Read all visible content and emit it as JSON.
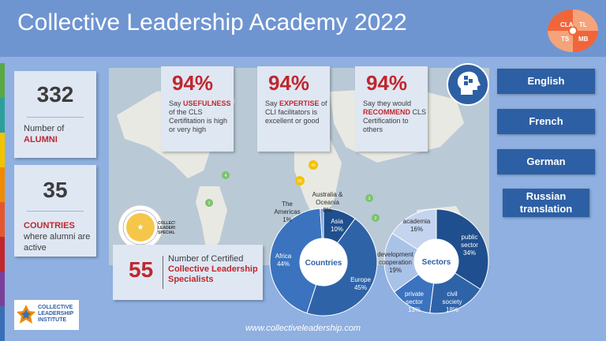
{
  "title": "Collective Leadership Academy 2022",
  "badge": {
    "tl": "CLA",
    "tr": "TL",
    "bl": "TS",
    "br": "MB"
  },
  "stats": [
    {
      "number": "332",
      "label_plain": "Number of",
      "label_red": "ALUMNI"
    },
    {
      "number": "35",
      "label_red": "COUNTRIES",
      "label_plain": "where alumni are active"
    }
  ],
  "percents": [
    {
      "value": "94%",
      "pre": "Say ",
      "em": "USEFULNESS",
      "post": " of the CLS Certifitation is high or very high"
    },
    {
      "value": "94%",
      "pre": "Say ",
      "em": "EXPERTISE",
      "post": " of CLI facilitators is excellent or good"
    },
    {
      "value": "94%",
      "pre": "Say they would ",
      "em": "RECOMMEND",
      "post": " CLS Certification to others"
    }
  ],
  "languages": [
    "English",
    "French",
    "German",
    "Russian translation"
  ],
  "certified": {
    "number": "55",
    "line1": "Number of Certified",
    "line2": "Collective Leadership",
    "line3": "Specialists"
  },
  "seal_text": "COLLECTIVE LEADERSHIP SPECIALIST",
  "seal_ring": "COLLECTIVE LEADERSHIP INSTITUTE",
  "logo": {
    "line1": "COLLECTIVE",
    "line2": "LEADERSHIP",
    "line3": "INSTITUTE"
  },
  "footer": "www.collectiveleadership.com",
  "map_markers": [
    "4",
    "3",
    "40",
    "55",
    "3",
    "2",
    "3"
  ],
  "chart_data": [
    {
      "type": "pie",
      "title": "Countries",
      "categories": [
        "Asia",
        "Europe",
        "Africa",
        "The Americas",
        "Australia & Oceania"
      ],
      "values": [
        10,
        45,
        44,
        1,
        0
      ],
      "labels": [
        "Asia\n10%",
        "Europe\n45%",
        "Africa\n44%",
        "The Americas\n1%",
        "Australia & Oceania\n0%"
      ]
    },
    {
      "type": "pie",
      "title": "Sectors",
      "categories": [
        "public sector",
        "civil society",
        "private sector",
        "development cooperation",
        "academia"
      ],
      "values": [
        34,
        18,
        13,
        19,
        16
      ],
      "labels": [
        "public\nsector\n34%",
        "civil\nsociety\n18%",
        "private\nsector\n13%",
        "development\ncooperation\n19%",
        "academia\n16%"
      ]
    }
  ]
}
